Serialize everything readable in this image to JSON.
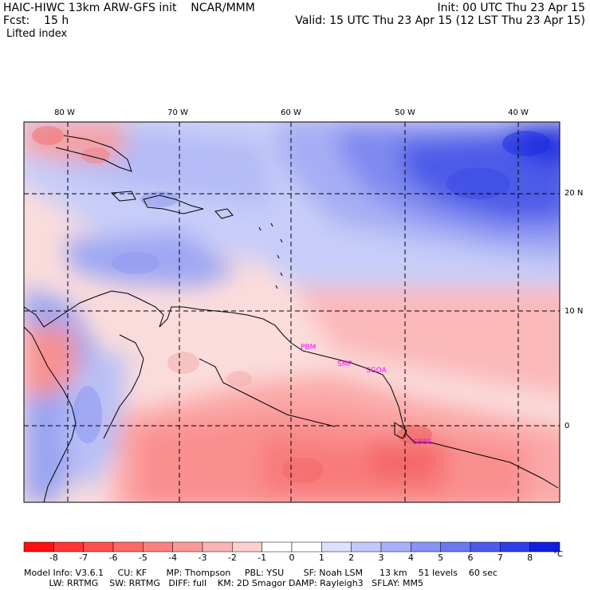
{
  "header": {
    "line1_left": "HAIC-HIWC 13km ARW-GFS init    NCAR/MMM",
    "line1_right": "Init: 00 UTC Thu 23 Apr 15",
    "line2_left": "Fcst:    15 h",
    "line2_right": "Valid: 15 UTC Thu 23 Apr 15 (12 LST Thu 23 Apr 15)",
    "field": "Lifted index"
  },
  "map": {
    "lon_labels": [
      "80 W",
      "70 W",
      "60 W",
      "50 W",
      "40 W"
    ],
    "lat_labels": [
      "20 N",
      "10 N",
      "0"
    ],
    "stations": [
      "PBM",
      "SMP",
      "SGOA",
      "SBBE"
    ],
    "stations_shown": [
      "PBM",
      "SMP",
      "SGOA",
      "SBBE"
    ],
    "station_color": "#ff00ff"
  },
  "colorbar": {
    "labels": [
      "-8",
      "-7",
      "-6",
      "-5",
      "-4",
      "-3",
      "-2",
      "-1",
      "0",
      "1",
      "2",
      "3",
      "4",
      "5",
      "6",
      "7",
      "8"
    ],
    "unit": "°C",
    "colors": [
      "#ff1010",
      "#ff3535",
      "#ff5050",
      "#ff6868",
      "#fc8080",
      "#fb9999",
      "#fcb3b3",
      "#fdd0d0",
      "#ffffff",
      "#dde0fd",
      "#c3c9fb",
      "#a7b0f8",
      "#8993f5",
      "#6c78f0",
      "#4d5aec",
      "#2e3ee6",
      "#0f1fe0"
    ]
  },
  "footer": {
    "line1": "Model Info: V3.6.1     CU: KF       MP: Thompson     PBL: YSU       SF: Noah LSM      13 km    51 levels    60 sec",
    "line2": "         LW: RRTMG    SW: RRTMG   DIFF: full    KM: 2D Smagor DAMP: Rayleigh3   SFLAY: MM5"
  }
}
